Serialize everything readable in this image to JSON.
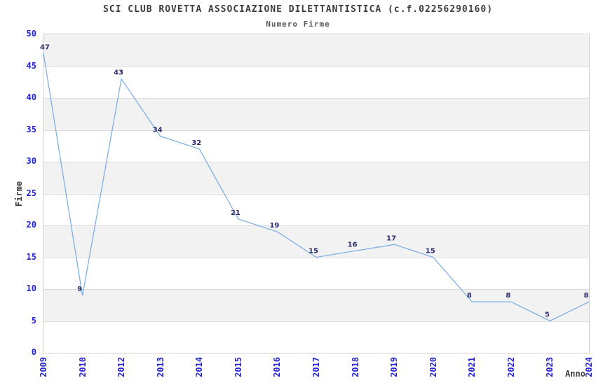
{
  "title": "SCI CLUB ROVETTA ASSOCIAZIONE DILETTANTISTICA (c.f.02256290160)",
  "subtitle": "Numero Firme",
  "axes": {
    "ylabel": "Firme",
    "xlabel": "Anno"
  },
  "chart_data": {
    "type": "line",
    "title": "SCI CLUB ROVETTA ASSOCIAZIONE DILETTANTISTICA (c.f.02256290160)",
    "subtitle": "Numero Firme",
    "categories": [
      "2009",
      "2010",
      "2012",
      "2013",
      "2014",
      "2015",
      "2016",
      "2017",
      "2018",
      "2019",
      "2020",
      "2021",
      "2022",
      "2023",
      "2024"
    ],
    "values": [
      47,
      9,
      43,
      34,
      32,
      21,
      19,
      15,
      16,
      17,
      15,
      8,
      8,
      5,
      8
    ],
    "data_labels_shown": true,
    "xlabel": "Anno",
    "ylabel": "Firme",
    "ylim": [
      0,
      50
    ],
    "ytick_step": 5,
    "grid": true,
    "legend": "none",
    "colors": {
      "line": "#7fb0e6",
      "band_fill": "#f2f2f2",
      "grid_line": "#dcdcdc",
      "plot_border": "#d2d2d2",
      "tick_label": "#2424d2",
      "data_label": "#2b2b6e",
      "title_text": "#3c3c3c",
      "subtitle_text": "#5a5a5a"
    }
  }
}
